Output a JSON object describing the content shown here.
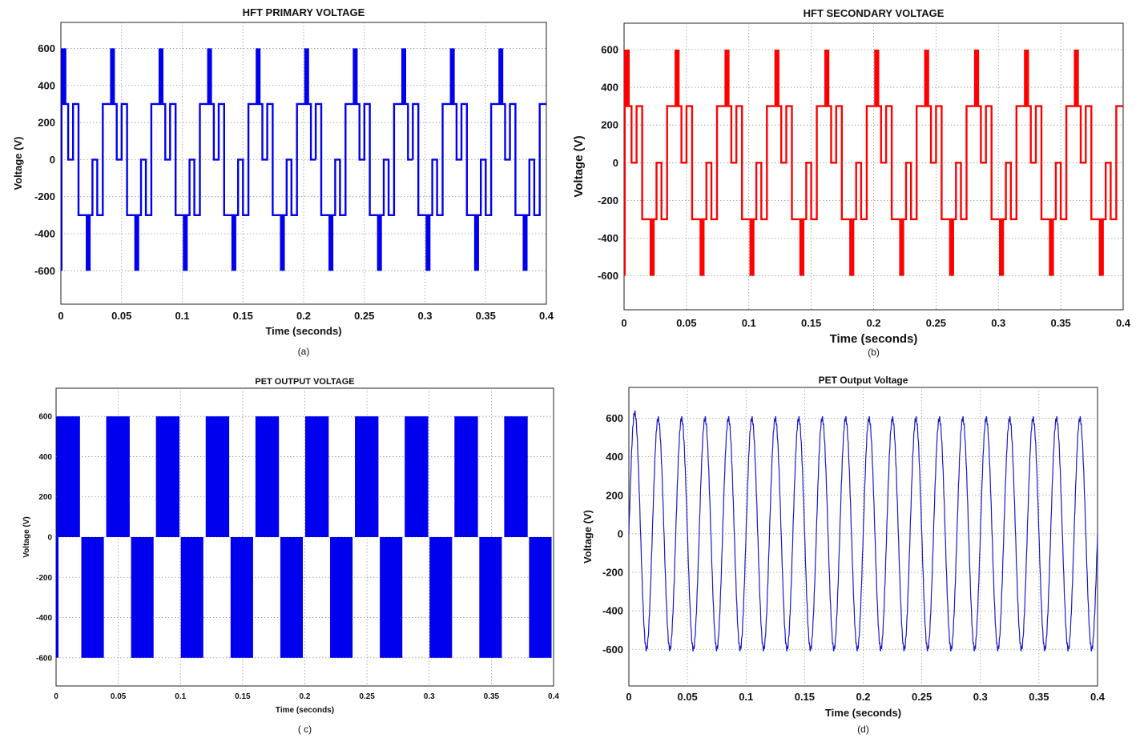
{
  "chart_data": [
    {
      "id": "a",
      "type": "line",
      "title": "HFT  PRIMARY  VOLTAGE",
      "xlabel": "Time (seconds)",
      "ylabel": "Voltage (V)",
      "caption": "(a)",
      "color": "#0000ee",
      "waveform": "multilevel_pwm",
      "fundamental_period": 0.04,
      "pwm_period": 0.01,
      "levels": [
        -600,
        -300,
        0,
        300,
        600
      ],
      "xlim": [
        0,
        0.4
      ],
      "ylim": [
        -780,
        740
      ],
      "xticks": [
        0,
        0.05,
        0.1,
        0.15,
        0.2,
        0.25,
        0.3,
        0.35,
        0.4
      ],
      "xtick_labels": [
        "0",
        "0.05",
        "0.1",
        "0.15",
        "0.2",
        "0.25",
        "0.3",
        "0.35",
        "0.4"
      ],
      "yticks": [
        -600,
        -400,
        -200,
        0,
        200,
        400,
        600
      ],
      "ytick_labels": [
        "-600",
        "-400",
        "-200",
        "0",
        "200",
        "400",
        "600"
      ],
      "grid": true
    },
    {
      "id": "b",
      "type": "line",
      "title": "HFT SECONDARY  VOLTAGE",
      "xlabel": "Time (seconds)",
      "ylabel": "Voltage (V)",
      "caption": "(b)",
      "color": "#ff0000",
      "waveform": "multilevel_pwm",
      "fundamental_period": 0.04,
      "pwm_period": 0.01,
      "levels": [
        -600,
        -300,
        0,
        300,
        600
      ],
      "xlim": [
        0,
        0.4
      ],
      "ylim": [
        -780,
        740
      ],
      "xticks": [
        0,
        0.05,
        0.1,
        0.15,
        0.2,
        0.25,
        0.3,
        0.35,
        0.4
      ],
      "xtick_labels": [
        "0",
        "0.05",
        "0.1",
        "0.15",
        "0.2",
        "0.25",
        "0.3",
        "0.35",
        "0.4"
      ],
      "yticks": [
        -600,
        -400,
        -200,
        0,
        200,
        400,
        600
      ],
      "ytick_labels": [
        "-600",
        "-400",
        "-200",
        "0",
        "200",
        "400",
        "600"
      ],
      "grid": true
    },
    {
      "id": "c",
      "type": "line",
      "title": "PET OUTPUT VOLTAGE",
      "xlabel": "Time (seconds)",
      "ylabel": "Voltage (V)",
      "caption": "( c)",
      "color": "#0000ee",
      "waveform": "pwm_blocks",
      "fundamental_period": 0.04,
      "high_fraction": 0.5,
      "levels": [
        -600,
        0,
        600
      ],
      "xlim": [
        0,
        0.4
      ],
      "ylim": [
        -740,
        740
      ],
      "xticks": [
        0,
        0.05,
        0.1,
        0.15,
        0.2,
        0.25,
        0.3,
        0.35,
        0.4
      ],
      "xtick_labels": [
        "0",
        "0.05",
        "0.1",
        "0.15",
        "0.2",
        "0.25",
        "0.3",
        "0.35",
        "0.4"
      ],
      "yticks": [
        -600,
        -400,
        -200,
        0,
        200,
        400,
        600
      ],
      "ytick_labels": [
        "-600",
        "-400",
        "-200",
        "0",
        "200",
        "400",
        "600"
      ],
      "grid": true
    },
    {
      "id": "d",
      "type": "line",
      "title": "PET Output Voltage",
      "xlabel": "Time (seconds)",
      "ylabel": "Voltage (V)",
      "caption": "(d)",
      "color": "#1a1acc",
      "waveform": "sine",
      "amplitude": 600,
      "frequency": 50,
      "initial_peak": 630,
      "xlim": [
        0,
        0.4
      ],
      "ylim": [
        -790,
        760
      ],
      "xticks": [
        0,
        0.05,
        0.1,
        0.15,
        0.2,
        0.25,
        0.3,
        0.35,
        0.4
      ],
      "xtick_labels": [
        "0",
        "0.05",
        "0.1",
        "0.15",
        "0.2",
        "0.25",
        "0.3",
        "0.35",
        "0.4"
      ],
      "yticks": [
        -600,
        -400,
        -200,
        0,
        200,
        400,
        600
      ],
      "ytick_labels": [
        "-600",
        "-400",
        "-200",
        "0",
        "200",
        "400",
        "600"
      ],
      "grid": true
    }
  ]
}
